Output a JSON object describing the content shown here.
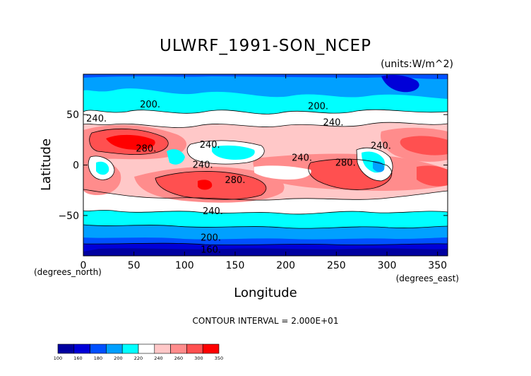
{
  "chart_data": {
    "type": "heatmap",
    "title": "ULWRF_1991-SON_NCEP",
    "subtitle": "(units:W/m^2)",
    "xlabel": "Longitude",
    "ylabel": "Latitude",
    "x_unit_label": "(degrees_east)",
    "y_unit_label": "(degrees_north)",
    "xlim": [
      0,
      360
    ],
    "ylim": [
      -90,
      90
    ],
    "x_ticks": [
      0,
      50,
      100,
      150,
      200,
      250,
      300,
      350
    ],
    "y_ticks": [
      50,
      0,
      -50
    ],
    "x_tick_labels": [
      "0",
      "50",
      "100",
      "150",
      "200",
      "250",
      "300",
      "350"
    ],
    "y_tick_labels": [
      "50",
      "0",
      "−50"
    ],
    "contour_interval_text": "CONTOUR INTERVAL = 2.000E+01",
    "contour_labels": [
      {
        "text": "200.",
        "lon": 66,
        "lat": 60
      },
      {
        "text": "240.",
        "lon": 13,
        "lat": 46
      },
      {
        "text": "280.",
        "lon": 62,
        "lat": 16
      },
      {
        "text": "240.",
        "lon": 125,
        "lat": 20
      },
      {
        "text": "240.",
        "lon": 118,
        "lat": 0
      },
      {
        "text": "280.",
        "lon": 150,
        "lat": -15
      },
      {
        "text": "240.",
        "lon": 216,
        "lat": 7
      },
      {
        "text": "200.",
        "lon": 232,
        "lat": 58
      },
      {
        "text": "240.",
        "lon": 247,
        "lat": 42
      },
      {
        "text": "280.",
        "lon": 259,
        "lat": 2
      },
      {
        "text": "240.",
        "lon": 294,
        "lat": 19
      },
      {
        "text": "240.",
        "lon": 128,
        "lat": -46
      },
      {
        "text": "200.",
        "lon": 126,
        "lat": -72
      },
      {
        "text": "160.",
        "lon": 126,
        "lat": -84
      }
    ],
    "colorbar": {
      "levels": [
        100,
        160,
        180,
        200,
        220,
        240,
        260,
        280,
        300,
        350
      ],
      "labels": [
        "100",
        "160",
        "180",
        "200",
        "220",
        "240",
        "260",
        "300",
        "350"
      ],
      "colors": [
        "#0000A0",
        "#0000D8",
        "#0050FF",
        "#00A0FF",
        "#00FFFF",
        "#FFFFFF",
        "#FFC8C8",
        "#FF8C8C",
        "#FF5050",
        "#FF0000"
      ]
    },
    "grid": false
  }
}
